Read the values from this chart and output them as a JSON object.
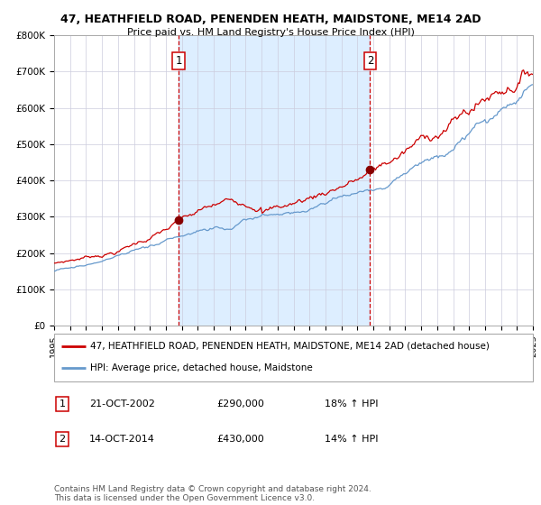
{
  "title": "47, HEATHFIELD ROAD, PENENDEN HEATH, MAIDSTONE, ME14 2AD",
  "subtitle": "Price paid vs. HM Land Registry's House Price Index (HPI)",
  "legend_line1": "47, HEATHFIELD ROAD, PENENDEN HEATH, MAIDSTONE, ME14 2AD (detached house)",
  "legend_line2": "HPI: Average price, detached house, Maidstone",
  "annotation1_label": "1",
  "annotation1_date": "21-OCT-2002",
  "annotation1_price": "£290,000",
  "annotation1_hpi": "18% ↑ HPI",
  "annotation2_label": "2",
  "annotation2_date": "14-OCT-2014",
  "annotation2_price": "£430,000",
  "annotation2_hpi": "14% ↑ HPI",
  "copyright": "Contains HM Land Registry data © Crown copyright and database right 2024.\nThis data is licensed under the Open Government Licence v3.0.",
  "vline1_x": 2002.8,
  "vline2_x": 2014.8,
  "point1_x": 2002.8,
  "point1_y": 290000,
  "point2_x": 2014.8,
  "point2_y": 430000,
  "ylim": [
    0,
    800000
  ],
  "xlim": [
    1995,
    2025
  ],
  "red_color": "#cc0000",
  "blue_color": "#6699cc",
  "bg_color": "#ddeeff",
  "grid_color": "#ccccdd",
  "shaded_start": 2002.8,
  "shaded_end": 2014.8
}
